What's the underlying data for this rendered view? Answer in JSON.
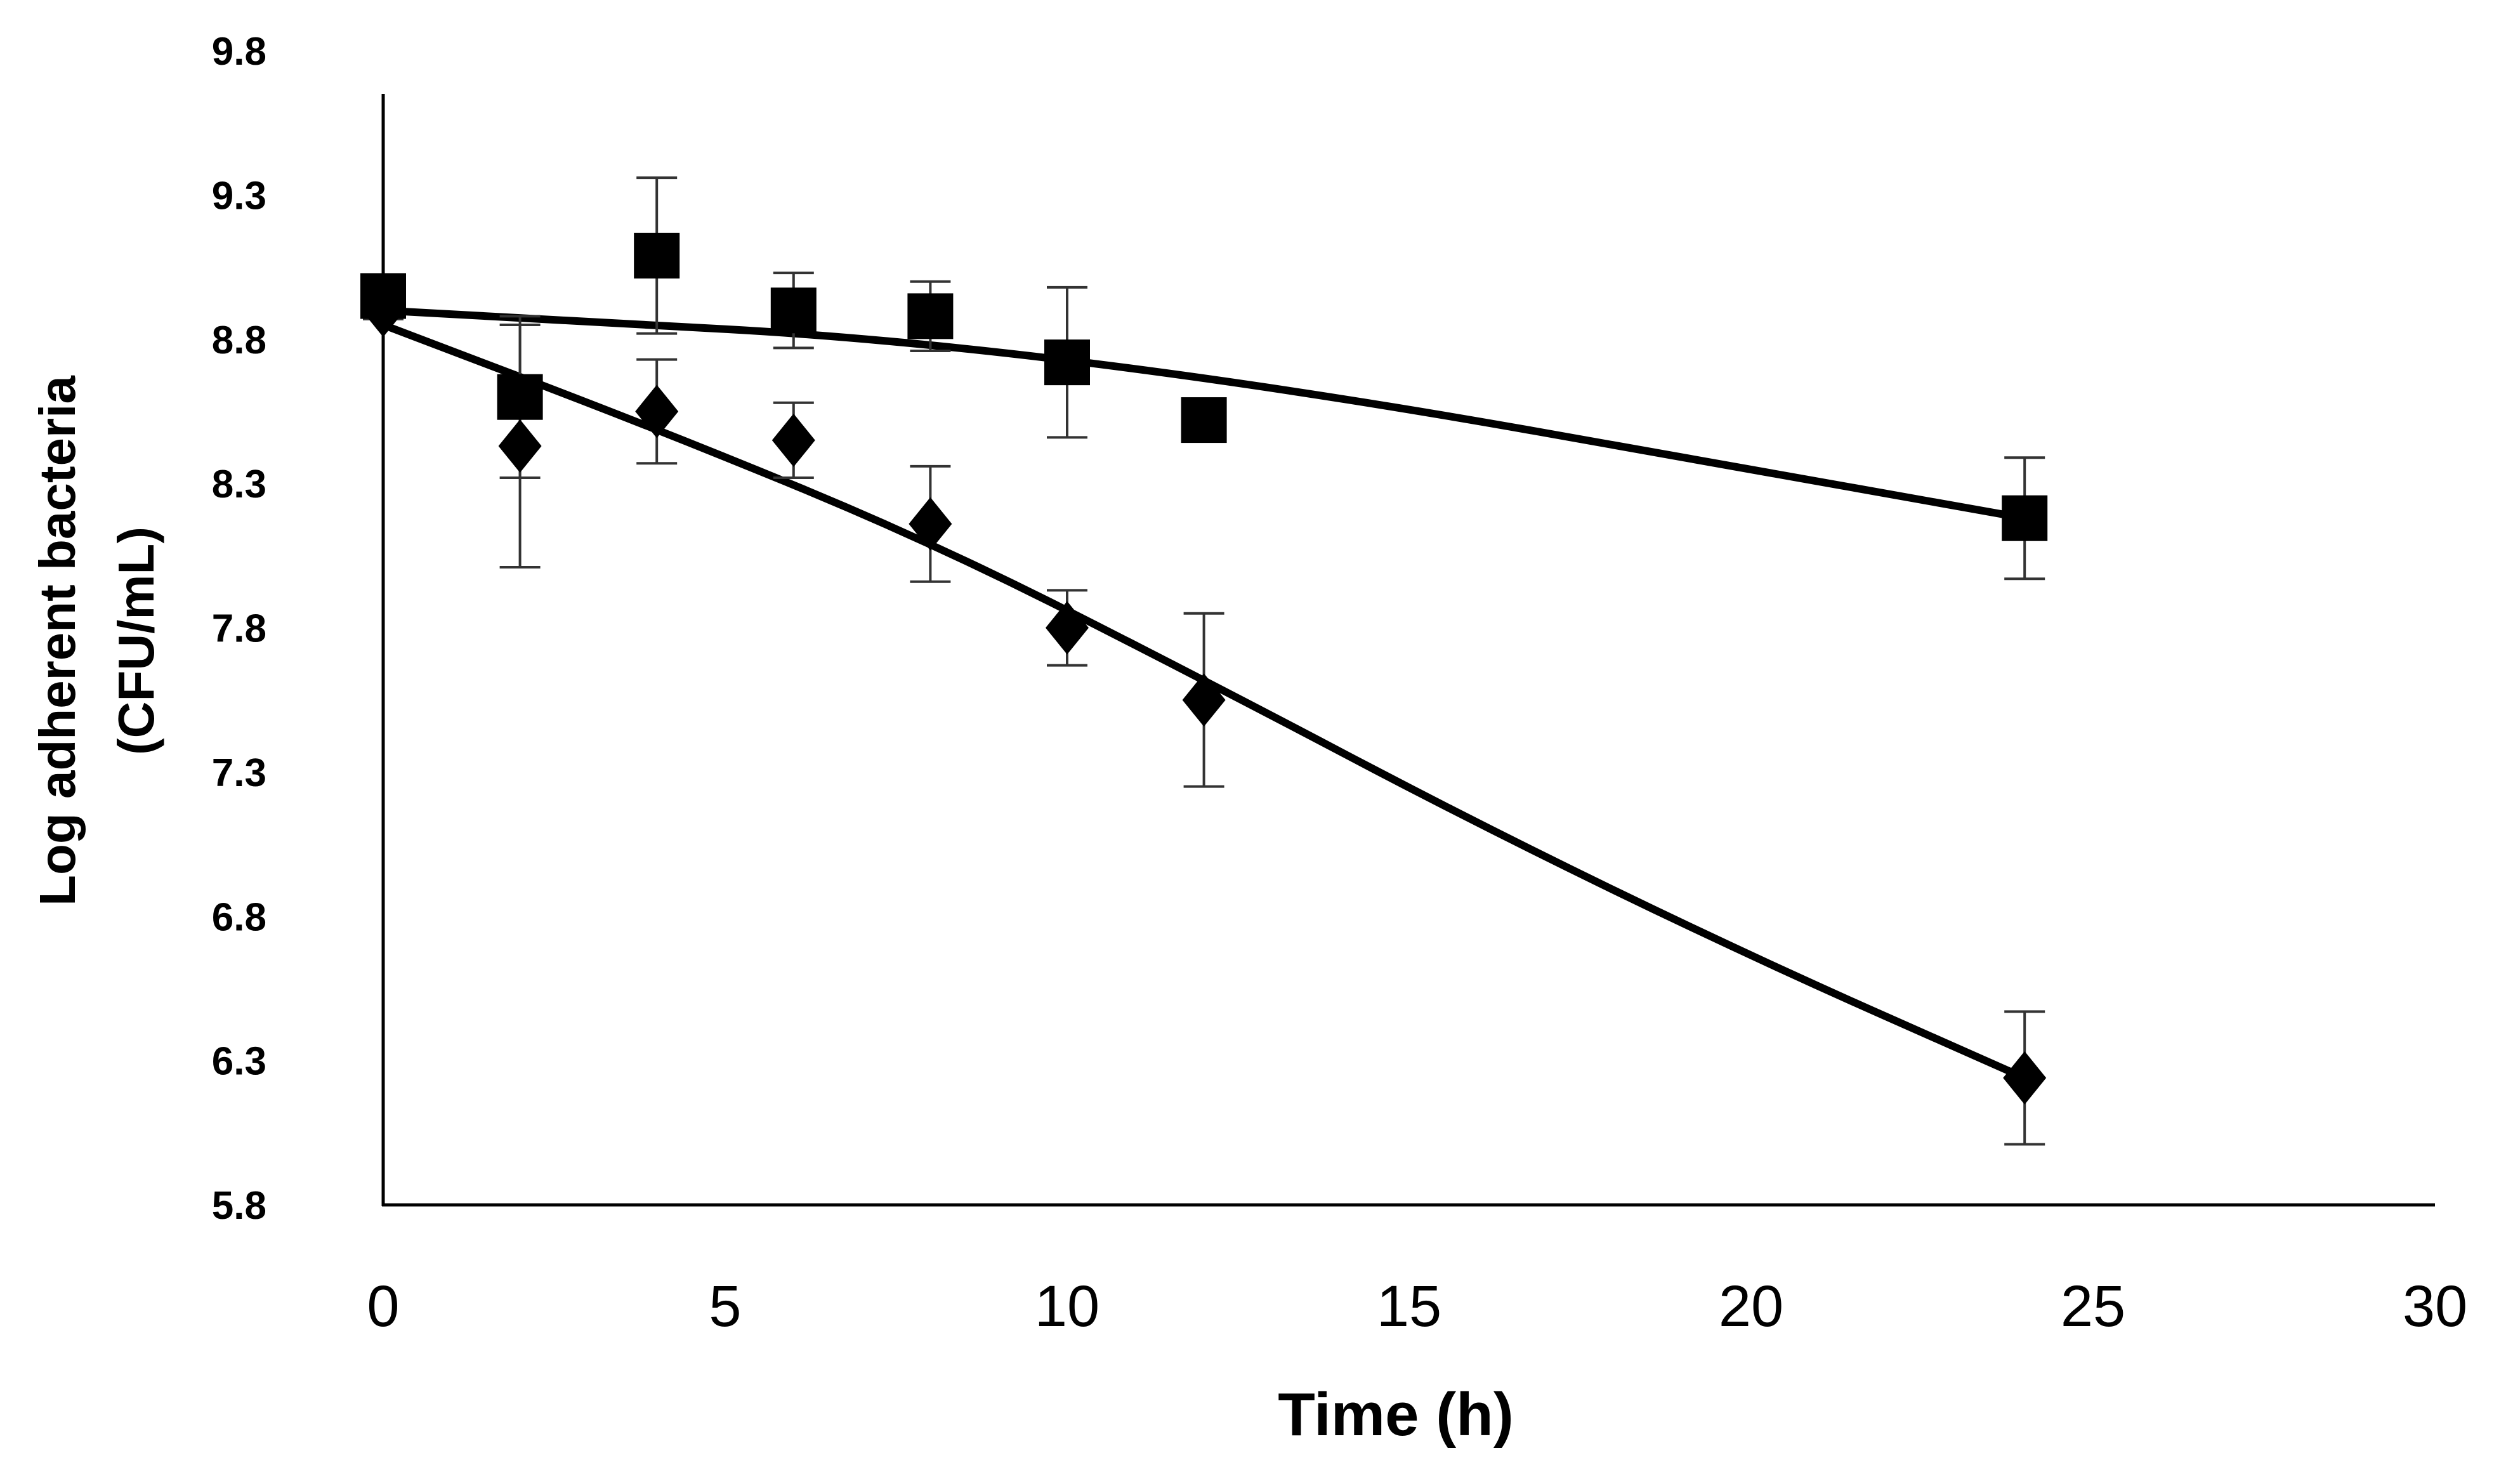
{
  "chart_data": {
    "type": "scatter",
    "title": "",
    "xlabel": "Time (h)",
    "ylabel": [
      "Log adherent bacteria",
      "(CFU/mL)"
    ],
    "xlim": [
      0,
      30
    ],
    "ylim": [
      5.8,
      9.8
    ],
    "xticks": [
      "0",
      "5",
      "10",
      "15",
      "20",
      "25",
      "30"
    ],
    "yticks": [
      "9.8",
      "9.3",
      "8.8",
      "8.3",
      "7.8",
      "7.3",
      "6.8",
      "6.3",
      "5.8"
    ],
    "grid": false,
    "legend": "none",
    "series": [
      {
        "name": "squares",
        "marker": "square",
        "color": "#000000",
        "points": [
          {
            "x": 0,
            "y": 8.95,
            "err": 0.03
          },
          {
            "x": 2,
            "y": 8.6,
            "err": 0.28
          },
          {
            "x": 4,
            "y": 9.09,
            "err": 0.27
          },
          {
            "x": 6,
            "y": 8.9,
            "err": 0.13
          },
          {
            "x": 8,
            "y": 8.88,
            "err": 0.12
          },
          {
            "x": 10,
            "y": 8.72,
            "err": 0.26
          },
          {
            "x": 12,
            "y": 8.52,
            "err": 0.06
          },
          {
            "x": 24,
            "y": 8.18,
            "err": 0.21
          }
        ],
        "fit": [
          {
            "x": 0,
            "y": 8.9
          },
          {
            "x": 10,
            "y": 8.77
          },
          {
            "x": 24,
            "y": 8.18
          }
        ]
      },
      {
        "name": "diamonds",
        "marker": "diamond",
        "color": "#000000",
        "points": [
          {
            "x": 0,
            "y": 8.9,
            "err": 0.03
          },
          {
            "x": 2,
            "y": 8.43,
            "err": 0.42
          },
          {
            "x": 4,
            "y": 8.55,
            "err": 0.18
          },
          {
            "x": 6,
            "y": 8.45,
            "err": 0.13
          },
          {
            "x": 8,
            "y": 8.16,
            "err": 0.2
          },
          {
            "x": 10,
            "y": 7.8,
            "err": 0.13
          },
          {
            "x": 12,
            "y": 7.55,
            "err": 0.3
          },
          {
            "x": 24,
            "y": 6.24,
            "err": 0.23
          }
        ],
        "fit": [
          {
            "x": 0,
            "y": 8.85
          },
          {
            "x": 4,
            "y": 8.49
          },
          {
            "x": 8,
            "y": 8.1
          },
          {
            "x": 12,
            "y": 7.62
          },
          {
            "x": 16,
            "y": 7.12
          },
          {
            "x": 20,
            "y": 6.66
          },
          {
            "x": 24,
            "y": 6.24
          }
        ]
      }
    ]
  }
}
